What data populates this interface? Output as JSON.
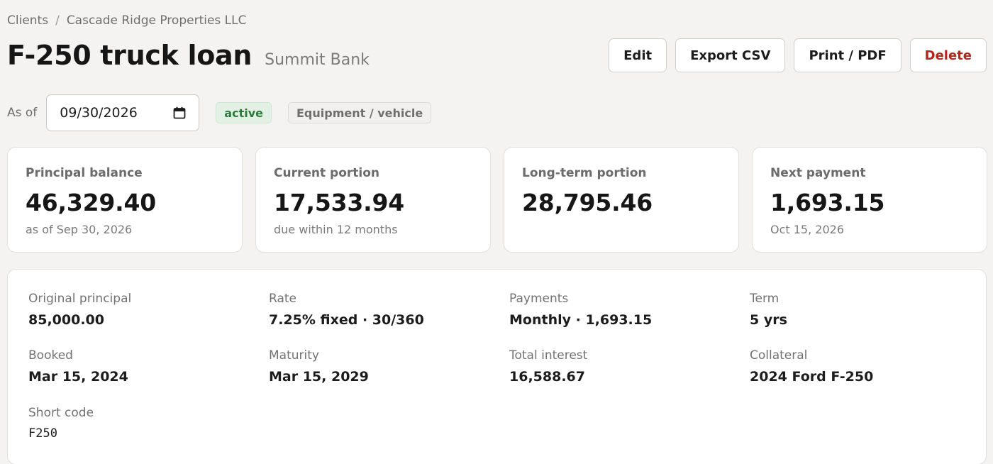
{
  "breadcrumb": {
    "root": "Clients",
    "separator": "/",
    "client": "Cascade Ridge Properties LLC"
  },
  "header": {
    "title": "F-250 truck loan",
    "lender": "Summit Bank"
  },
  "actions": {
    "edit": "Edit",
    "export": "Export CSV",
    "print": "Print / PDF",
    "delete": "Delete"
  },
  "asof": {
    "label": "As of",
    "value": "09/30/2026",
    "icon": "calendar-icon"
  },
  "badges": {
    "status": "active",
    "category": "Equipment / vehicle"
  },
  "cards": [
    {
      "label": "Principal balance",
      "value": "46,329.40",
      "sub": "as of Sep 30, 2026"
    },
    {
      "label": "Current portion",
      "value": "17,533.94",
      "sub": "due within 12 months"
    },
    {
      "label": "Long-term portion",
      "value": "28,795.46",
      "sub": ""
    },
    {
      "label": "Next payment",
      "value": "1,693.15",
      "sub": "Oct 15, 2026"
    }
  ],
  "details": {
    "original_principal": {
      "label": "Original principal",
      "value": "85,000.00"
    },
    "rate": {
      "label": "Rate",
      "value": "7.25% fixed · 30/360"
    },
    "payments": {
      "label": "Payments",
      "value": "Monthly · 1,693.15"
    },
    "term": {
      "label": "Term",
      "value": "5 yrs"
    },
    "booked": {
      "label": "Booked",
      "value": "Mar 15, 2024"
    },
    "maturity": {
      "label": "Maturity",
      "value": "Mar 15, 2029"
    },
    "total_interest": {
      "label": "Total interest",
      "value": "16,588.67"
    },
    "collateral": {
      "label": "Collateral",
      "value": "2024 Ford F-250"
    },
    "short_code": {
      "label": "Short code",
      "value": "F250"
    }
  },
  "colors": {
    "background": "#f4f3f1",
    "danger": "#b3261e",
    "active_badge_text": "#2e7a3a",
    "active_badge_bg": "#e3f1e5"
  }
}
